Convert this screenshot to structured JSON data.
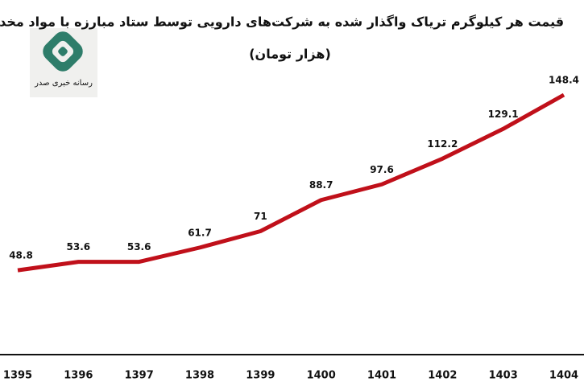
{
  "logo_text": "رسانه خبری صدر",
  "chart_data": {
    "type": "line",
    "title": "قیمت هر کیلوگرم تریاک واگذار شده به شرکت‌های دارویی توسط ستاد مبارزه با مواد مخدر",
    "subtitle": "(هزار تومان)",
    "categories": [
      "1395",
      "1396",
      "1397",
      "1398",
      "1399",
      "1400",
      "1401",
      "1402",
      "1403",
      "1404"
    ],
    "series": [
      {
        "name": "قیمت",
        "color": "#c0101a",
        "values": [
          48.8,
          53.6,
          53.6,
          61.7,
          71,
          88.7,
          97.6,
          112.2,
          129.1,
          148.4
        ]
      }
    ]
  }
}
